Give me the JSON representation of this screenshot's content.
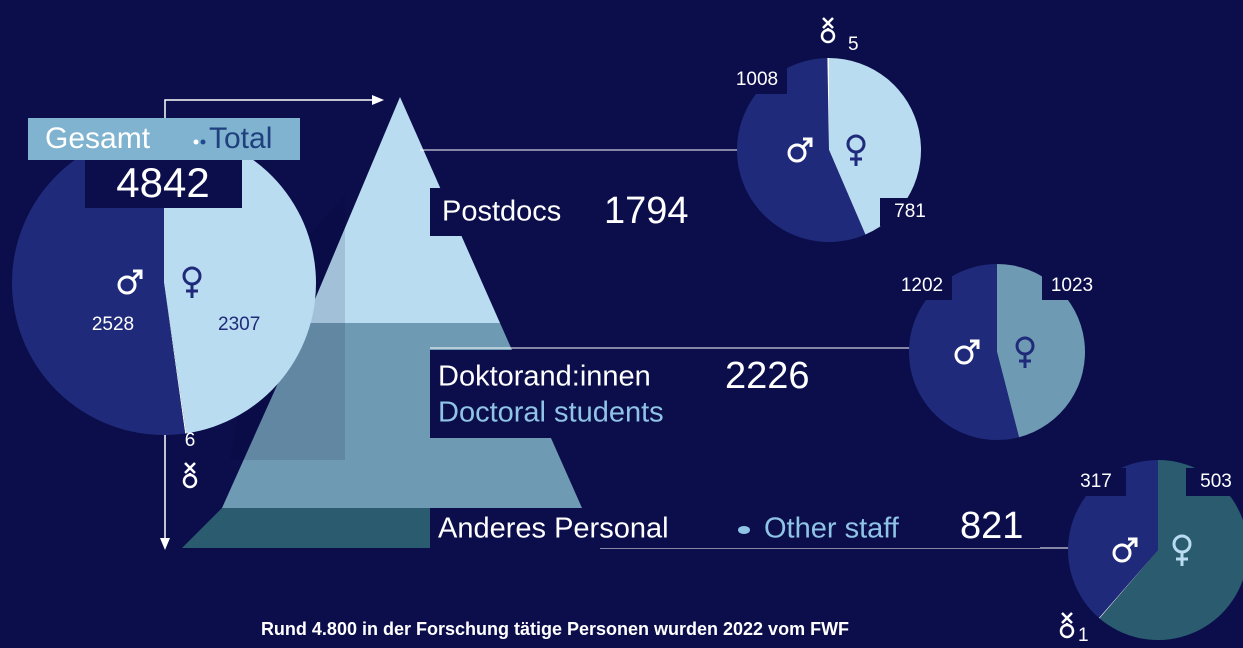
{
  "chart_data": [
    {
      "type": "pie",
      "title": "Gesamt",
      "subtitle": "Total",
      "total": 4842,
      "values": [
        2307,
        6,
        2528
      ],
      "colors": [
        "#b9dcf0",
        "#ffffff",
        "#1f2b7a"
      ]
    },
    {
      "type": "pie",
      "title": "Postdocs",
      "total": 1794,
      "values": [
        781,
        1008,
        5
      ],
      "colors": [
        "#b9dcf0",
        "#1f2b7a",
        "#ffffff"
      ]
    },
    {
      "type": "pie",
      "title": "Doktorand:innen",
      "subtitle": "Doctoral students",
      "total": 2226,
      "values": [
        1023,
        1202
      ],
      "colors": [
        "#6f9ab3",
        "#1f2b7a"
      ]
    },
    {
      "type": "pie",
      "title": "Anderes Personal",
      "subtitle": "Other staff",
      "total": 821,
      "values": [
        503,
        1,
        317
      ],
      "colors": [
        "#2a5b6f",
        "#ffffff",
        "#1f2b7a"
      ]
    }
  ],
  "footer": "Rund 4.800 in der Forschung tätige Personen wurden 2022 vom FWF"
}
